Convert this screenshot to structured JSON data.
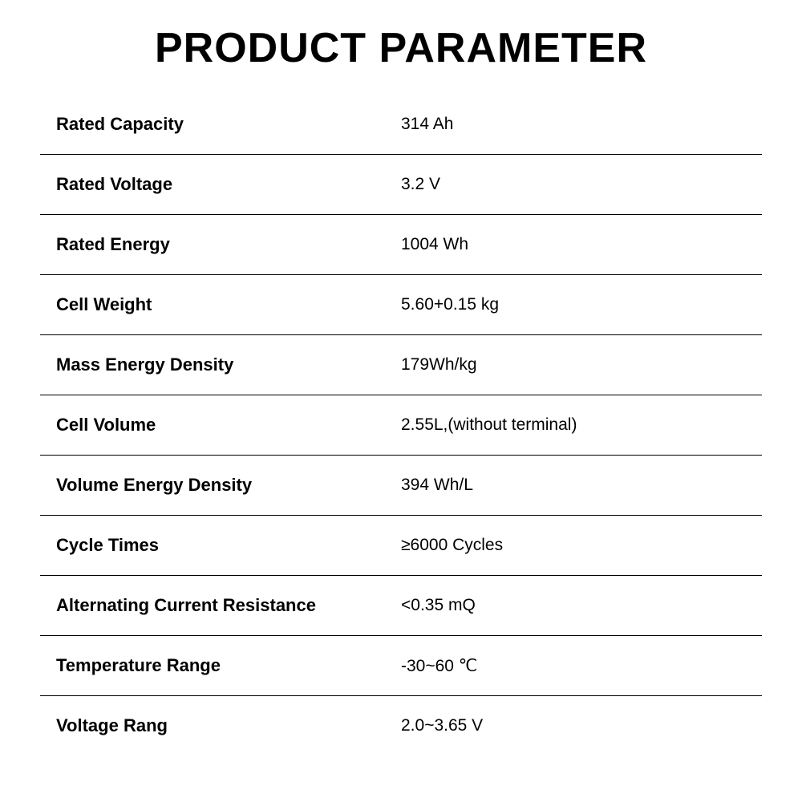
{
  "title": "PRODUCT PARAMETER",
  "table": {
    "type": "spec-table",
    "columns": [
      "label",
      "value"
    ],
    "label_font_weight": 700,
    "value_font_weight": 400,
    "label_fontsize": 22,
    "value_fontsize": 21,
    "border_color": "#000000",
    "background_color": "#ffffff",
    "text_color": "#000000",
    "rows": [
      {
        "label": "Rated Capacity",
        "value": "314 Ah"
      },
      {
        "label": "Rated Voltage",
        "value": "3.2 V"
      },
      {
        "label": "Rated Energy",
        "value": "1004 Wh"
      },
      {
        "label": "Cell Weight",
        "value": "5.60+0.15 kg"
      },
      {
        "label": "Mass Energy Density",
        "value": "179Wh/kg"
      },
      {
        "label": "Cell Volume",
        "value": "2.55L,(without terminal)"
      },
      {
        "label": "Volume Energy Density",
        "value": "394 Wh/L"
      },
      {
        "label": "Cycle Times",
        "value": "≥6000 Cycles"
      },
      {
        "label": "Alternating Current Resistance",
        "value": "<0.35 mQ"
      },
      {
        "label": "Temperature Range",
        "value": "-30~60 ℃"
      },
      {
        "label": "Voltage Rang",
        "value": "2.0~3.65 V"
      }
    ]
  },
  "title_style": {
    "fontsize": 52,
    "font_weight": 900,
    "color": "#000000",
    "letter_spacing": 1
  }
}
